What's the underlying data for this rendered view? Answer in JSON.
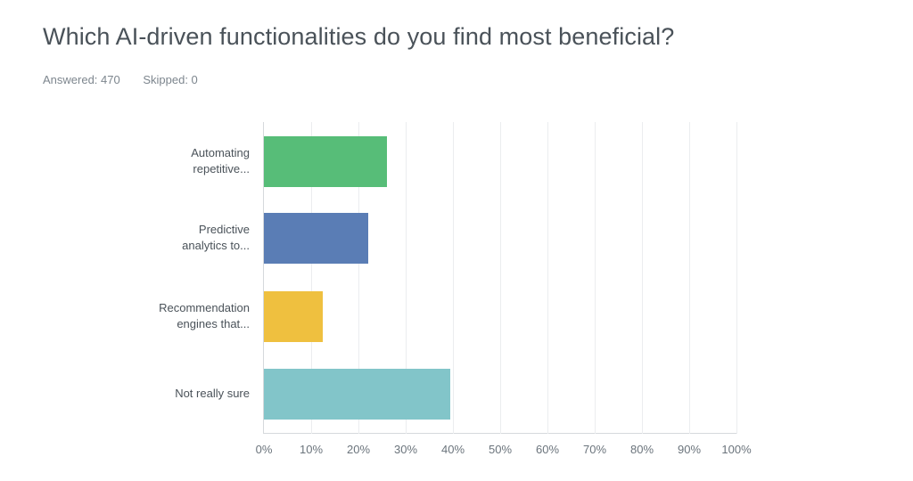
{
  "header": {
    "title": "Which AI-driven functionalities do you find most beneficial?",
    "answered": "Answered: 470",
    "skipped": "Skipped: 0"
  },
  "chart_data": {
    "type": "bar",
    "orientation": "horizontal",
    "title": "Which AI-driven functionalities do you find most beneficial?",
    "xlabel": "",
    "ylabel": "",
    "xlim": [
      0,
      100
    ],
    "grid": true,
    "legend": "none",
    "categories": [
      "Automating repetitive...",
      "Predictive analytics to...",
      "Recommendation engines that...",
      "Not really sure"
    ],
    "category_lines": [
      [
        "Automating",
        "repetitive..."
      ],
      [
        "Predictive",
        "analytics to..."
      ],
      [
        "Recommendation",
        "engines that..."
      ],
      [
        "Not really sure"
      ]
    ],
    "values": [
      26,
      22,
      12.5,
      39.5
    ],
    "colors": [
      "#57bd78",
      "#5a7db5",
      "#efc03f",
      "#82c5c9"
    ],
    "x_ticks": [
      "0%",
      "10%",
      "20%",
      "30%",
      "40%",
      "50%",
      "60%",
      "70%",
      "80%",
      "90%",
      "100%"
    ]
  }
}
